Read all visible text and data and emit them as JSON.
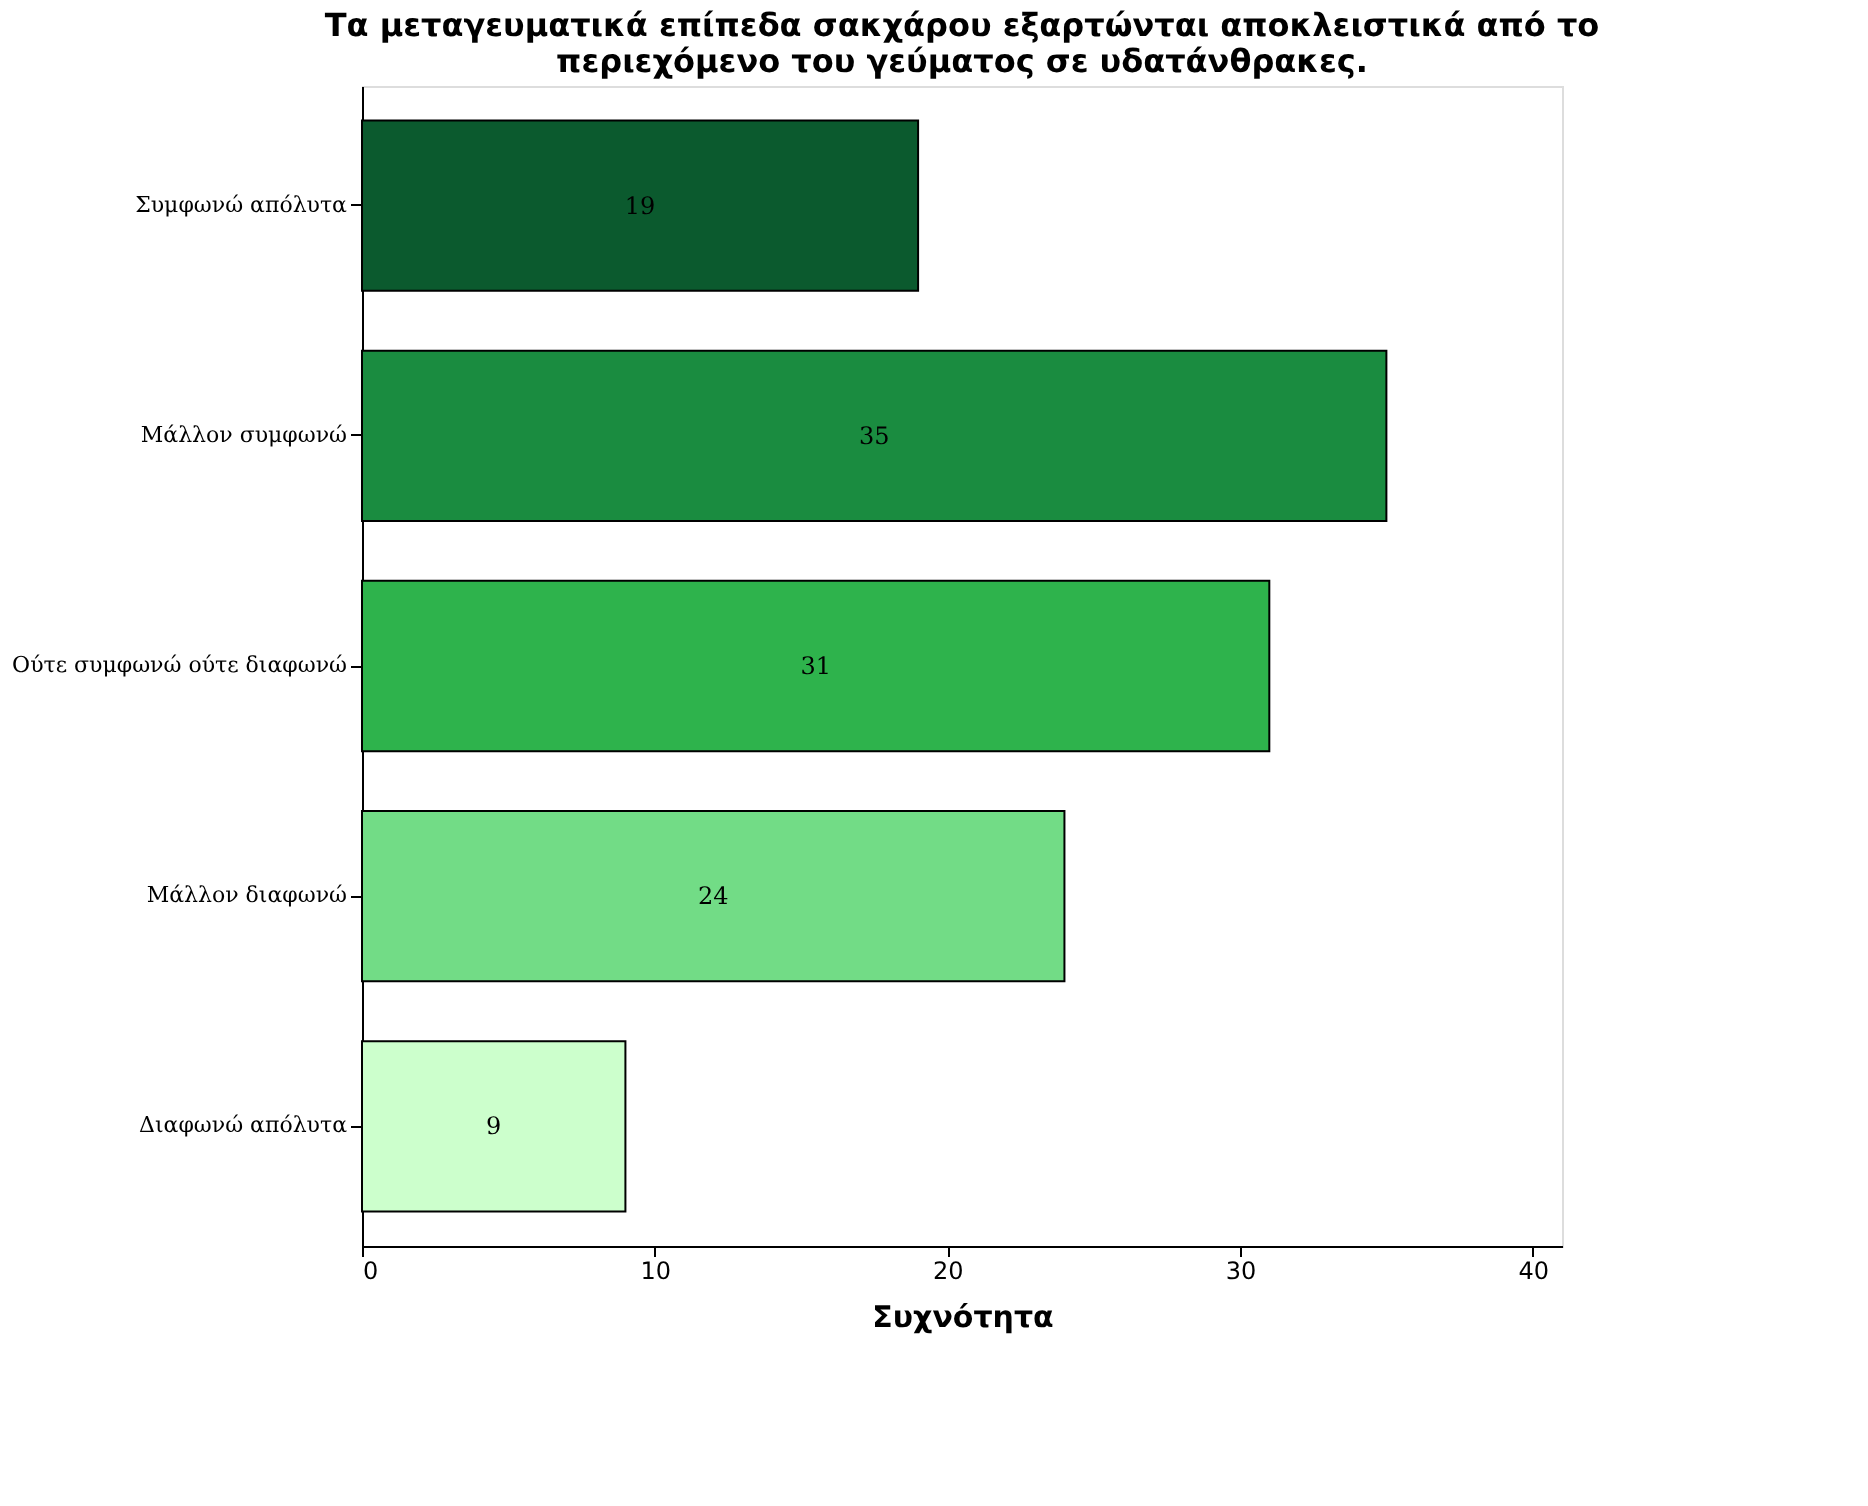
{
  "chart_data": {
    "type": "bar",
    "orientation": "horizontal",
    "title": "Τα μεταγευματικά επίπεδα σακχάρου εξαρτώνται αποκλειστικά από το περιεχόμενο του γεύματος σε υδατάνθρακες.",
    "xlabel": "Συχνότητα",
    "categories": [
      "Συμφωνώ απόλυτα",
      "Μάλλον συμφωνώ",
      "Ούτε συμφωνώ ούτε διαφωνώ",
      "Μάλλον διαφωνώ",
      "Διαφωνώ απόλυτα"
    ],
    "values": [
      19,
      35,
      31,
      24,
      9
    ],
    "colors": [
      "#0b5a2e",
      "#1a8c40",
      "#2eb34c",
      "#72dc86",
      "#ccffcc"
    ],
    "xlim": [
      0,
      41
    ],
    "xticks": [
      0,
      10,
      20,
      30,
      40
    ],
    "grid": false,
    "data_labels": true
  }
}
